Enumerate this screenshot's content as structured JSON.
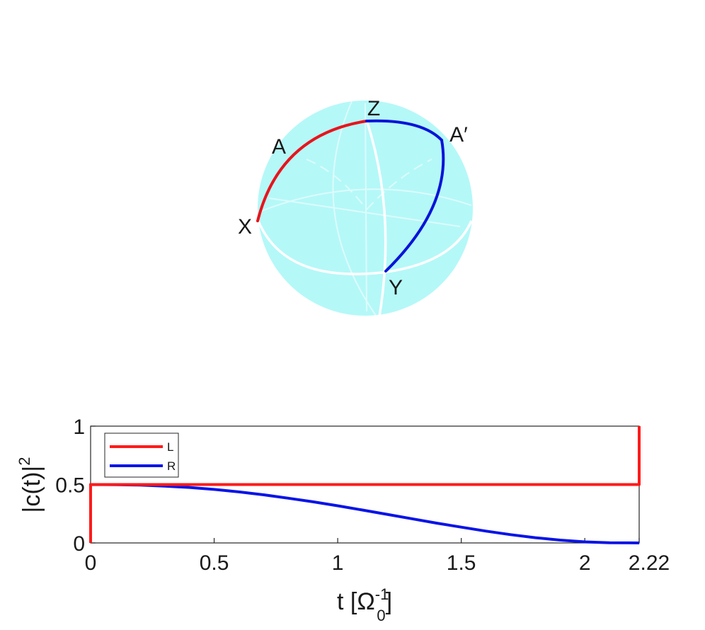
{
  "colors": {
    "sphere_fill": "#a8f7f7",
    "sphere_fill_light": "#c6fbfb",
    "grid_line": "#ffffff",
    "path_red": "#e8141c",
    "path_blue": "#0a14d8",
    "axis": "#262626",
    "series_L": "#ff1a1a",
    "series_R": "#0a14e6"
  },
  "sphere": {
    "labels": {
      "z": "Z",
      "x": "X",
      "y": "Y",
      "a": "A",
      "a_prime": "A′"
    }
  },
  "chart_data": {
    "type": "line",
    "title": "",
    "xlabel": "t [Ω",
    "xlabel_sup": "-1",
    "xlabel_sub": "0",
    "xlabel_close": "]",
    "ylabel": "|c(t)|",
    "ylabel_sup": "2",
    "xlim": [
      0,
      2.22
    ],
    "ylim": [
      0,
      1
    ],
    "xticks": [
      0,
      0.5,
      1,
      1.5,
      2,
      2.22
    ],
    "xtick_labels": [
      "0",
      "0.5",
      "1",
      "1.5",
      "2",
      "2.22"
    ],
    "yticks": [
      0,
      0.5,
      1
    ],
    "ytick_labels": [
      "0",
      "0.5",
      "1"
    ],
    "legend_position": "top-left",
    "grid": false,
    "series": [
      {
        "name": "L",
        "x": [
          0,
          0,
          0.5,
          1.0,
          1.5,
          2.0,
          2.22,
          2.22
        ],
        "y": [
          0,
          0.5,
          0.5,
          0.5,
          0.5,
          0.5,
          0.5,
          1
        ]
      },
      {
        "name": "R",
        "x": [
          0,
          0,
          0.1,
          0.2,
          0.3,
          0.4,
          0.5,
          0.6,
          0.7,
          0.8,
          0.9,
          1.0,
          1.1,
          1.2,
          1.3,
          1.4,
          1.5,
          1.6,
          1.7,
          1.8,
          1.9,
          2.0,
          2.1,
          2.22
        ],
        "y": [
          0,
          0.5,
          0.499,
          0.495,
          0.486,
          0.475,
          0.458,
          0.437,
          0.412,
          0.383,
          0.352,
          0.318,
          0.282,
          0.245,
          0.207,
          0.17,
          0.135,
          0.101,
          0.071,
          0.045,
          0.024,
          0.009,
          0.002,
          0.0
        ]
      }
    ]
  }
}
